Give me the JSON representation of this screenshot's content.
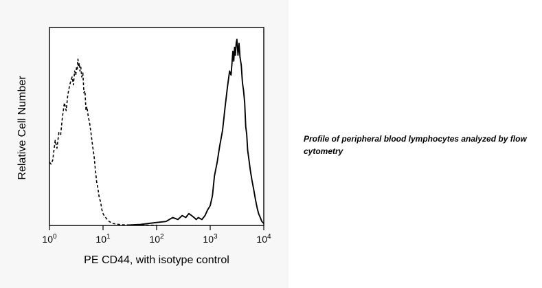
{
  "caption": "Profile of peripheral blood lymphocytes analyzed by flow cytometry",
  "chart_data": {
    "type": "line",
    "title": "",
    "xlabel": "PE CD44, with isotype control",
    "ylabel": "Relative Cell Number",
    "xscale": "log",
    "xlim": [
      1,
      10000
    ],
    "ylim": [
      0,
      100
    ],
    "x_ticks": [
      {
        "value": 1,
        "base": "10",
        "exp": "0"
      },
      {
        "value": 10,
        "base": "10",
        "exp": "1"
      },
      {
        "value": 100,
        "base": "10",
        "exp": "2"
      },
      {
        "value": 1000,
        "base": "10",
        "exp": "3"
      },
      {
        "value": 10000,
        "base": "10",
        "exp": "4"
      }
    ],
    "grid": false,
    "legend": false,
    "series": [
      {
        "style": "dashed",
        "color": "#000000",
        "x": [
          1.0,
          1.07,
          1.15,
          1.2,
          1.28,
          1.38,
          1.5,
          1.62,
          1.75,
          1.9,
          2.05,
          2.2,
          2.35,
          2.5,
          2.65,
          2.8,
          2.95,
          3.1,
          3.2,
          3.3,
          3.4,
          3.5,
          3.6,
          3.7,
          3.85,
          4.0,
          4.2,
          4.4,
          4.6,
          4.8,
          5.0,
          5.3,
          5.6,
          6.0,
          6.4,
          6.8,
          7.2,
          7.6,
          8.0,
          8.5,
          9.0,
          9.5,
          10.0,
          10.5,
          11.2,
          12.0,
          13.0,
          14.0,
          15.0,
          17.0,
          20.0,
          25.0,
          35.0,
          50.0,
          70.0,
          100.0
        ],
        "y": [
          32,
          31,
          33,
          37,
          43,
          39,
          47,
          46,
          55,
          62,
          58,
          66,
          70,
          73,
          75,
          71,
          78,
          76,
          80,
          79,
          84,
          80,
          82,
          78,
          80,
          75,
          77,
          67,
          68,
          58,
          60,
          55,
          52,
          46,
          40,
          35,
          28,
          22,
          19,
          14,
          12,
          8,
          6,
          5,
          4,
          3,
          2,
          1.5,
          1,
          0.8,
          0.5,
          0.3,
          0.2,
          0.2,
          0.1,
          0.1
        ]
      },
      {
        "style": "solid",
        "color": "#000000",
        "x": [
          30.0,
          50.0,
          70.0,
          100.0,
          150.0,
          200.0,
          250.0,
          300.0,
          350.0,
          400.0,
          450.0,
          500.0,
          550.0,
          600.0,
          700.0,
          800.0,
          900.0,
          1000.0,
          1100.0,
          1200.0,
          1350.0,
          1500.0,
          1700.0,
          1900.0,
          2100.0,
          2300.0,
          2450.0,
          2550.0,
          2650.0,
          2750.0,
          2850.0,
          2950.0,
          3050.0,
          3150.0,
          3300.0,
          3450.0,
          3600.0,
          3800.0,
          4000.0,
          4200.0,
          4400.0,
          4600.0,
          4800.0,
          5000.0,
          5300.0,
          5600.0,
          6000.0,
          6500.0,
          7000.0,
          7500.0,
          8000.0,
          8600.0,
          9200.0,
          10000.0
        ],
        "y": [
          0.2,
          0.5,
          1,
          1.5,
          2,
          4,
          3,
          5,
          4,
          6,
          5,
          4,
          3,
          4,
          3,
          5,
          8,
          10,
          15,
          25,
          32,
          40,
          48,
          60,
          70,
          78,
          76,
          82,
          88,
          83,
          90,
          86,
          92,
          94,
          86,
          92,
          85,
          81,
          72,
          68,
          62,
          50,
          46,
          38,
          33,
          28,
          23,
          18,
          13,
          9,
          6,
          4,
          2,
          1
        ]
      }
    ]
  }
}
